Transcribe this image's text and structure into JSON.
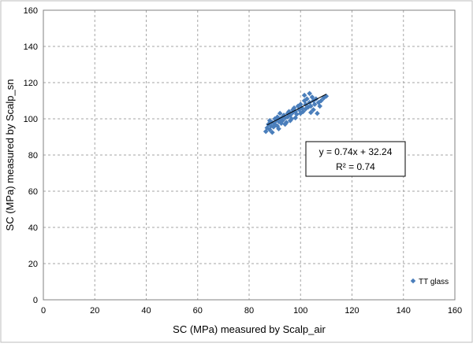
{
  "chart_data": {
    "type": "scatter",
    "title": "",
    "xlabel": "SC (MPa) measured by Scalp_air",
    "ylabel": "SC (MPa) measured by Scalp_sn",
    "xlim": [
      0,
      160
    ],
    "ylim": [
      0,
      160
    ],
    "xticks": [
      0,
      20,
      40,
      60,
      80,
      100,
      120,
      140,
      160
    ],
    "yticks": [
      0,
      20,
      40,
      60,
      80,
      100,
      120,
      140,
      160
    ],
    "grid": "dashed",
    "legend_position": "bottom-right",
    "marker_color": "#4a7ebb",
    "series": [
      {
        "name": "TT glass",
        "points": [
          [
            86.5,
            93
          ],
          [
            87,
            95
          ],
          [
            87.5,
            97
          ],
          [
            88,
            94
          ],
          [
            88.5,
            96
          ],
          [
            89,
            98
          ],
          [
            89.5,
            95.5
          ],
          [
            90,
            97
          ],
          [
            90,
            100
          ],
          [
            90.5,
            99
          ],
          [
            91,
            96
          ],
          [
            91,
            101
          ],
          [
            91.5,
            98.5
          ],
          [
            92,
            100
          ],
          [
            92,
            103
          ],
          [
            92.5,
            97.5
          ],
          [
            93,
            101
          ],
          [
            93,
            99
          ],
          [
            93.5,
            102
          ],
          [
            94,
            100.5
          ],
          [
            94.5,
            98
          ],
          [
            95,
            103
          ],
          [
            95,
            101
          ],
          [
            95.5,
            104
          ],
          [
            96,
            102
          ],
          [
            96.5,
            100
          ],
          [
            97,
            103.5
          ],
          [
            97,
            105
          ],
          [
            97.5,
            106
          ],
          [
            98,
            104
          ],
          [
            98.5,
            102.5
          ],
          [
            99,
            107
          ],
          [
            99.5,
            105
          ],
          [
            100,
            108
          ],
          [
            100.5,
            106
          ],
          [
            101,
            104
          ],
          [
            101.5,
            110
          ],
          [
            101.5,
            113
          ],
          [
            102,
            108
          ],
          [
            102.5,
            111
          ],
          [
            103,
            106.5
          ],
          [
            103.5,
            114
          ],
          [
            103.5,
            109
          ],
          [
            104,
            107
          ],
          [
            104.5,
            112
          ],
          [
            105,
            110
          ],
          [
            105,
            105
          ],
          [
            105.5,
            108
          ],
          [
            106,
            111
          ],
          [
            106.5,
            103
          ],
          [
            107,
            109
          ],
          [
            107.5,
            107
          ],
          [
            108,
            110
          ],
          [
            109,
            111.5
          ],
          [
            110,
            112.5
          ],
          [
            88,
            99
          ],
          [
            89,
            92.5
          ],
          [
            91.5,
            94.5
          ],
          [
            94,
            97
          ],
          [
            96,
            99
          ],
          [
            98,
            100.5
          ],
          [
            100,
            103
          ],
          [
            102,
            105.5
          ],
          [
            104,
            103.5
          ]
        ]
      }
    ],
    "trendline": {
      "slope": 0.74,
      "intercept": 32.24,
      "x_range": [
        87,
        110
      ],
      "color": "#000000",
      "equation": "y = 0.74x + 32.24",
      "r_squared": "R² = 0.74"
    }
  }
}
